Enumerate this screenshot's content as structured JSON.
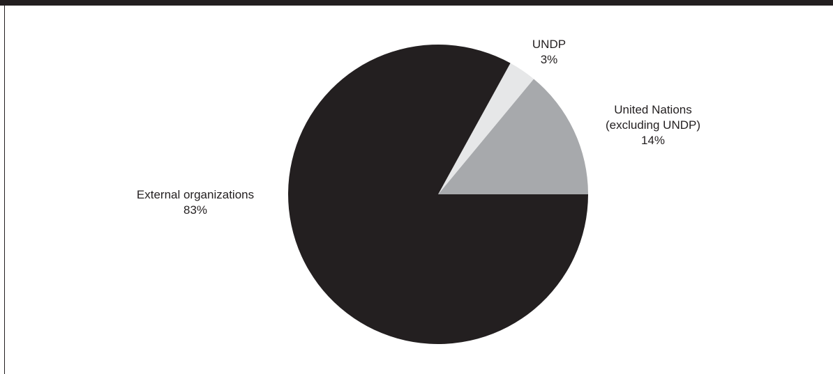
{
  "chart_data": {
    "type": "pie",
    "title": "",
    "start_angle_deg": 0,
    "direction": "counterclockwise",
    "slices": [
      {
        "label": "United Nations (excluding UNDP)",
        "label_lines": [
          "United Nations",
          "(excluding UNDP)"
        ],
        "value": 14,
        "display": "14%",
        "color": "#a7a9ac"
      },
      {
        "label": "UNDP",
        "label_lines": [
          "UNDP"
        ],
        "value": 3,
        "display": "3%",
        "color": "#e6e7e8"
      },
      {
        "label": "External organizations",
        "label_lines": [
          "External organizations"
        ],
        "value": 83,
        "display": "83%",
        "color": "#231f20"
      }
    ]
  },
  "colors": {
    "frame": "#231f20",
    "text": "#231f20"
  }
}
